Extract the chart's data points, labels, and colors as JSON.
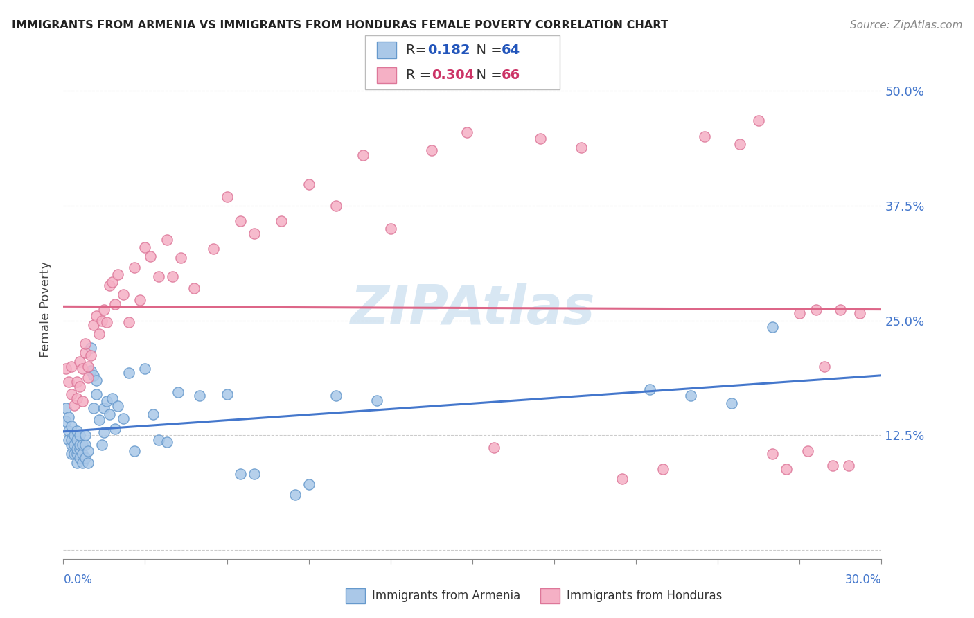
{
  "title": "IMMIGRANTS FROM ARMENIA VS IMMIGRANTS FROM HONDURAS FEMALE POVERTY CORRELATION CHART",
  "source": "Source: ZipAtlas.com",
  "ylabel": "Female Poverty",
  "xlim": [
    0.0,
    0.3
  ],
  "ylim": [
    -0.01,
    0.535
  ],
  "yticks": [
    0.0,
    0.125,
    0.25,
    0.375,
    0.5
  ],
  "ytick_labels": [
    "",
    "12.5%",
    "25.0%",
    "37.5%",
    "50.0%"
  ],
  "xtick_left_label": "0.0%",
  "xtick_right_label": "30.0%",
  "armenia_R": "0.182",
  "armenia_N": "64",
  "honduras_R": "0.304",
  "honduras_N": "66",
  "armenia_fill": "#aac8e8",
  "armenia_edge": "#6699cc",
  "honduras_fill": "#f5b0c5",
  "honduras_edge": "#dd7799",
  "armenia_line": "#4477cc",
  "honduras_line": "#dd6688",
  "watermark": "ZIPAtlas",
  "watermark_color": "#cce0f0",
  "grid_color": "#cccccc",
  "legend_blue": "#2255bb",
  "legend_pink": "#cc3366",
  "arm_x": [
    0.001,
    0.001,
    0.002,
    0.002,
    0.002,
    0.003,
    0.003,
    0.003,
    0.003,
    0.004,
    0.004,
    0.004,
    0.005,
    0.005,
    0.005,
    0.005,
    0.005,
    0.006,
    0.006,
    0.006,
    0.006,
    0.007,
    0.007,
    0.007,
    0.008,
    0.008,
    0.008,
    0.009,
    0.009,
    0.01,
    0.01,
    0.011,
    0.011,
    0.012,
    0.012,
    0.013,
    0.014,
    0.015,
    0.015,
    0.016,
    0.017,
    0.018,
    0.019,
    0.02,
    0.022,
    0.024,
    0.026,
    0.03,
    0.033,
    0.035,
    0.038,
    0.042,
    0.05,
    0.06,
    0.065,
    0.07,
    0.085,
    0.09,
    0.1,
    0.115,
    0.215,
    0.23,
    0.245,
    0.26
  ],
  "arm_y": [
    0.14,
    0.155,
    0.13,
    0.145,
    0.12,
    0.105,
    0.115,
    0.12,
    0.135,
    0.105,
    0.115,
    0.125,
    0.095,
    0.105,
    0.11,
    0.12,
    0.13,
    0.1,
    0.11,
    0.115,
    0.125,
    0.095,
    0.105,
    0.115,
    0.1,
    0.115,
    0.125,
    0.095,
    0.108,
    0.195,
    0.22,
    0.155,
    0.19,
    0.17,
    0.185,
    0.142,
    0.115,
    0.128,
    0.155,
    0.162,
    0.148,
    0.165,
    0.132,
    0.157,
    0.143,
    0.193,
    0.108,
    0.198,
    0.148,
    0.12,
    0.118,
    0.172,
    0.168,
    0.17,
    0.083,
    0.083,
    0.06,
    0.072,
    0.168,
    0.163,
    0.175,
    0.168,
    0.16,
    0.243
  ],
  "hon_x": [
    0.001,
    0.002,
    0.003,
    0.003,
    0.004,
    0.005,
    0.005,
    0.006,
    0.006,
    0.007,
    0.007,
    0.008,
    0.008,
    0.009,
    0.009,
    0.01,
    0.011,
    0.012,
    0.013,
    0.014,
    0.015,
    0.016,
    0.017,
    0.018,
    0.019,
    0.02,
    0.022,
    0.024,
    0.026,
    0.028,
    0.03,
    0.032,
    0.035,
    0.038,
    0.04,
    0.043,
    0.048,
    0.055,
    0.06,
    0.065,
    0.07,
    0.08,
    0.09,
    0.1,
    0.11,
    0.12,
    0.135,
    0.148,
    0.158,
    0.175,
    0.19,
    0.205,
    0.22,
    0.235,
    0.248,
    0.255,
    0.26,
    0.265,
    0.27,
    0.273,
    0.276,
    0.279,
    0.282,
    0.285,
    0.288,
    0.292
  ],
  "hon_y": [
    0.198,
    0.183,
    0.17,
    0.2,
    0.158,
    0.165,
    0.183,
    0.178,
    0.205,
    0.162,
    0.198,
    0.215,
    0.225,
    0.188,
    0.2,
    0.212,
    0.245,
    0.255,
    0.235,
    0.25,
    0.262,
    0.248,
    0.288,
    0.292,
    0.268,
    0.3,
    0.278,
    0.248,
    0.308,
    0.272,
    0.33,
    0.32,
    0.298,
    0.338,
    0.298,
    0.318,
    0.285,
    0.328,
    0.385,
    0.358,
    0.345,
    0.358,
    0.398,
    0.375,
    0.43,
    0.35,
    0.435,
    0.455,
    0.112,
    0.448,
    0.438,
    0.078,
    0.088,
    0.45,
    0.442,
    0.468,
    0.105,
    0.088,
    0.258,
    0.108,
    0.262,
    0.2,
    0.092,
    0.262,
    0.092,
    0.258
  ]
}
